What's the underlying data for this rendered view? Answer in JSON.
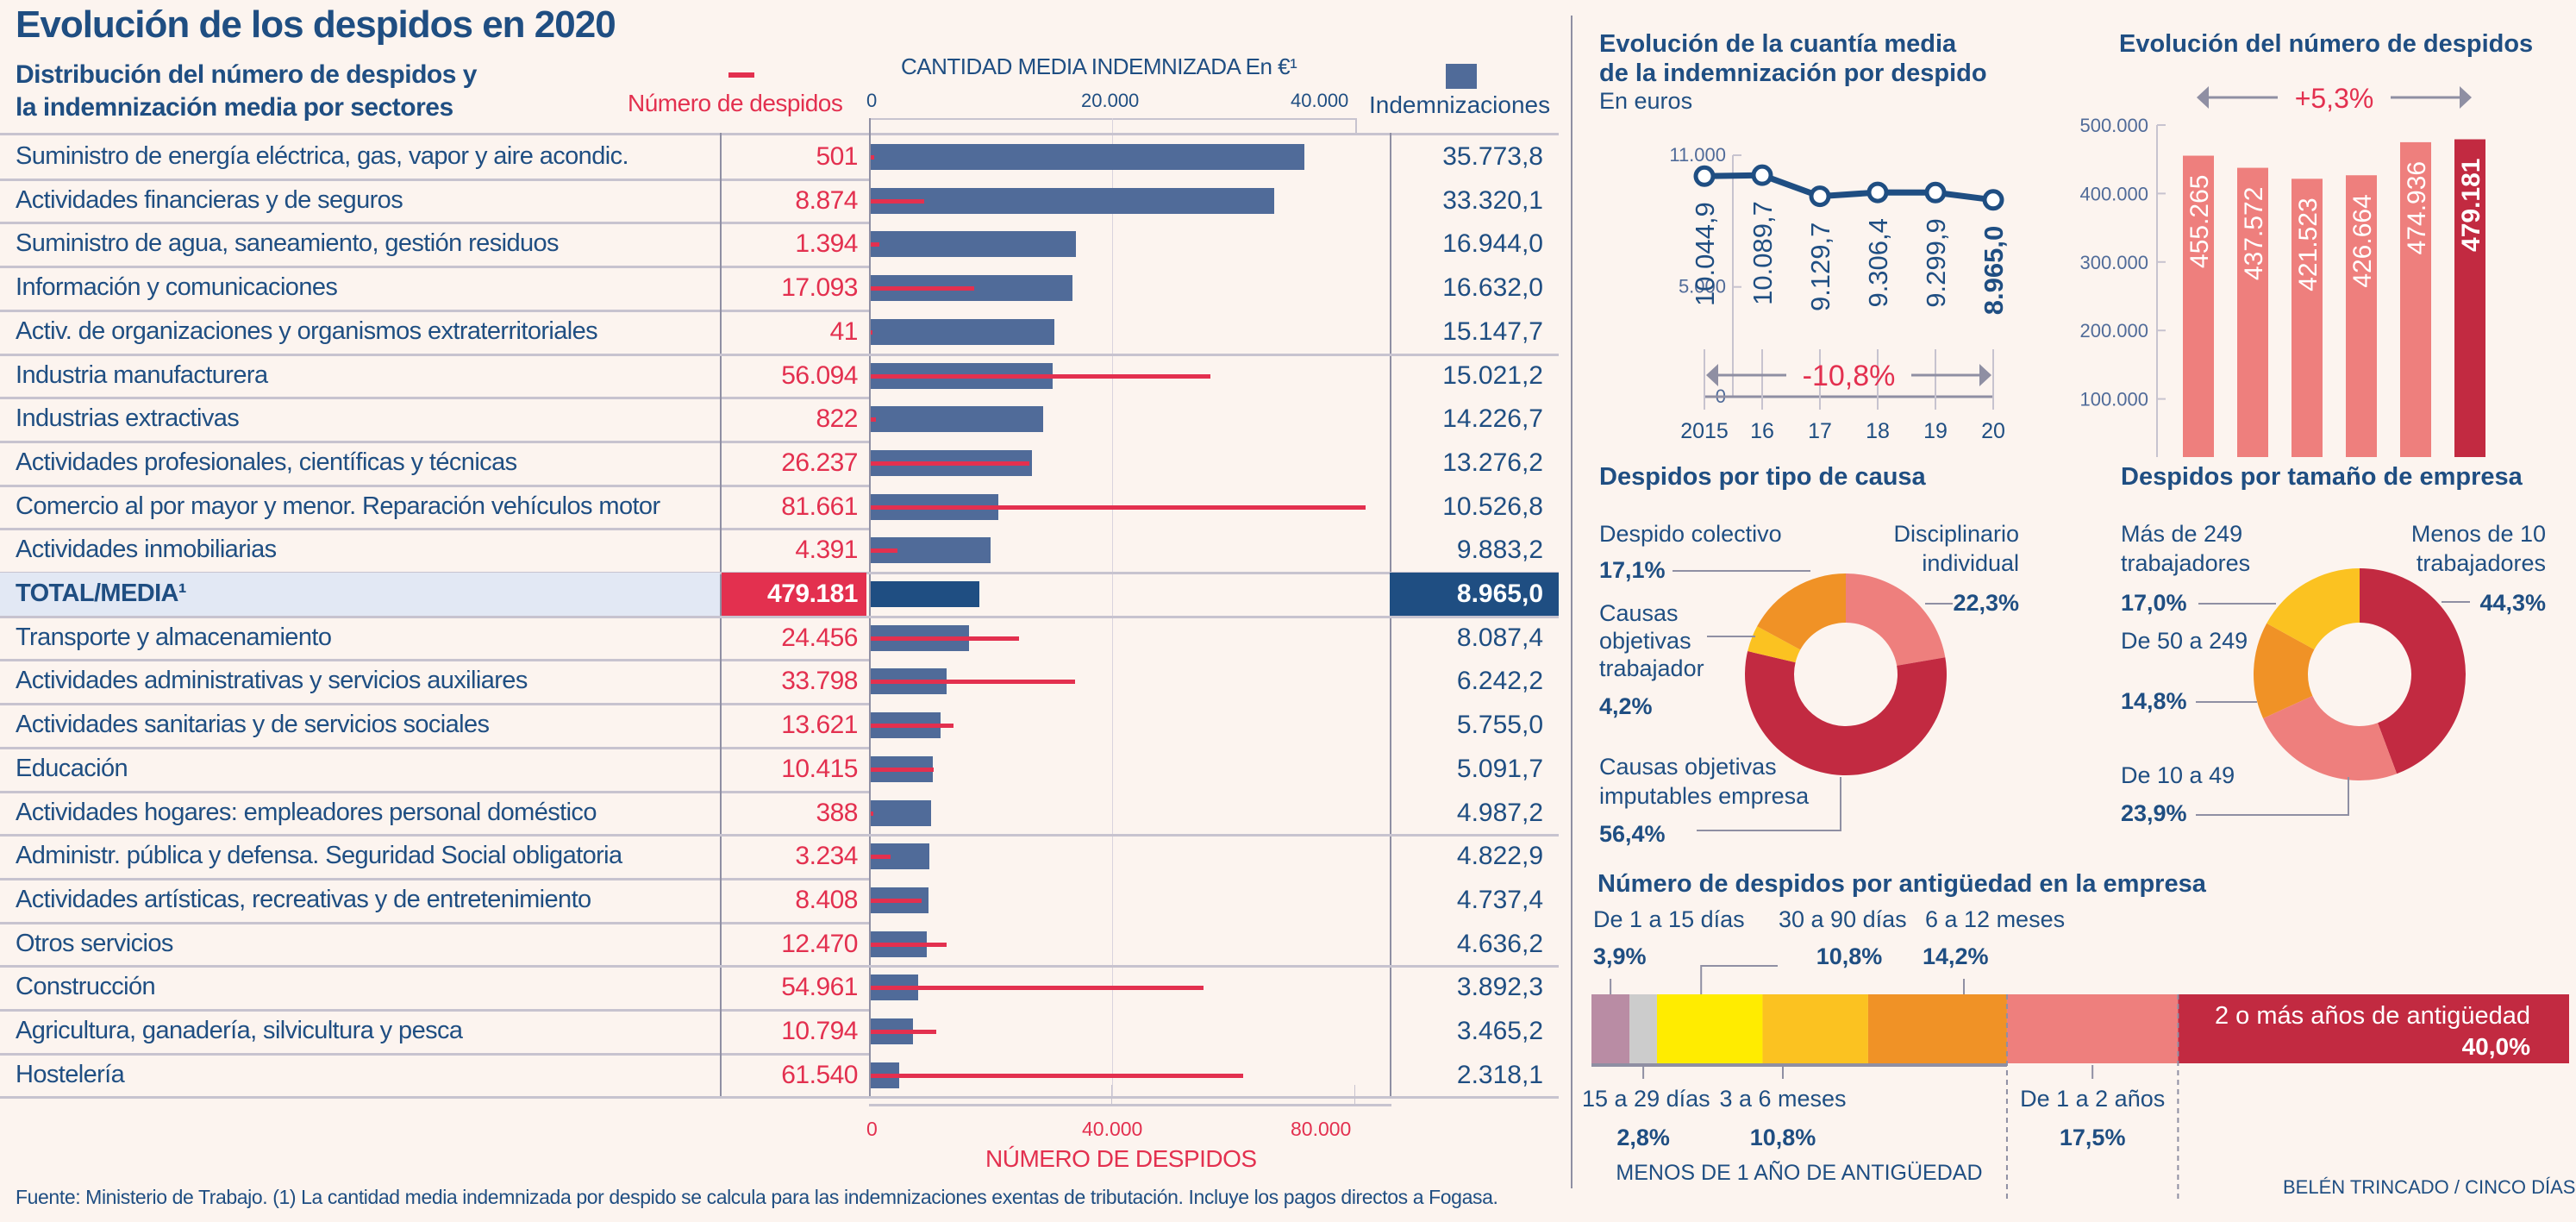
{
  "header": {
    "title": "Evolución de los despidos en 2020",
    "subtitle_line1": "Distribución del número de despidos y",
    "subtitle_line2": "la indemnización media por sectores"
  },
  "colors": {
    "navy": "#1f4e82",
    "bar_blue": "#506b99",
    "red": "#e3304f",
    "dark_red": "#c22a41",
    "salmon": "#ee7f7d",
    "orange": "#f09226",
    "amber": "#fbc221",
    "yellow": "#ffec00",
    "mauve": "#b98ca4",
    "grey": "#cccccc",
    "background": "#fcf4ef"
  },
  "sector_table": {
    "legend_despidos": "Número de despidos",
    "legend_indemnizaciones": "Indemnizaciones",
    "top_axis_title": "CANTIDAD MEDIA INDEMNIZADA En €¹",
    "top_axis_ticks": [
      "0",
      "20.000",
      "40.000"
    ],
    "bottom_axis_ticks": [
      "0",
      "40.000",
      "80.000"
    ],
    "bottom_axis_title": "NÚMERO DE DESPIDOS"
  },
  "chart_data": [
    {
      "type": "bar",
      "title": "Distribución del número de despidos y la indemnización media por sectores",
      "orientation": "horizontal",
      "xlabel_top": "CANTIDAD MEDIA INDEMNIZADA En €¹",
      "xlabel_bottom": "NÚMERO DE DESPIDOS",
      "xlim_indemnizacion": [
        0,
        40000
      ],
      "xlim_despidos": [
        0,
        80000
      ],
      "categories": [
        "Suministro de energía eléctrica, gas, vapor y aire acondic.",
        "Actividades financieras y de seguros",
        "Suministro de agua, saneamiento, gestión residuos",
        "Información y comunicaciones",
        "Activ. de organizaciones y organismos extraterritoriales",
        "Industria manufacturera",
        "Industrias extractivas",
        "Actividades profesionales, científicas y técnicas",
        "Comercio al por mayor y menor. Reparación vehículos motor",
        "Actividades inmobiliarias",
        "TOTAL/MEDIA¹",
        "Transporte y almacenamiento",
        "Actividades administrativas y servicios auxiliares",
        "Actividades sanitarias y de servicios sociales",
        "Educación",
        "Actividades hogares: empleadores personal doméstico",
        "Administr. pública y defensa. Seguridad Social obligatoria",
        "Actividades artísticas, recreativas y de entretenimiento",
        "Otros servicios",
        "Construcción",
        "Agricultura, ganadería, silvicultura y pesca",
        "Hostelería"
      ],
      "series": [
        {
          "name": "Número de despidos",
          "display": [
            "501",
            "8.874",
            "1.394",
            "17.093",
            "41",
            "56.094",
            "822",
            "26.237",
            "81.661",
            "4.391",
            "479.181",
            "24.456",
            "33.798",
            "13.621",
            "10.415",
            "388",
            "3.234",
            "8.408",
            "12.470",
            "54.961",
            "10.794",
            "61.540"
          ],
          "values": [
            501,
            8874,
            1394,
            17093,
            41,
            56094,
            822,
            26237,
            81661,
            4391,
            479181,
            24456,
            33798,
            13621,
            10415,
            388,
            3234,
            8408,
            12470,
            54961,
            10794,
            61540
          ]
        },
        {
          "name": "Indemnizaciones",
          "display": [
            "35.773,8",
            "33.320,1",
            "16.944,0",
            "16.632,0",
            "15.147,7",
            "15.021,2",
            "14.226,7",
            "13.276,2",
            "10.526,8",
            "9.883,2",
            "8.965,0",
            "8.087,4",
            "6.242,2",
            "5.755,0",
            "5.091,7",
            "4.987,2",
            "4.822,9",
            "4.737,4",
            "4.636,2",
            "3.892,3",
            "3.465,2",
            "2.318,1"
          ],
          "values": [
            35773.8,
            33320.1,
            16944.0,
            16632.0,
            15147.7,
            15021.2,
            14226.7,
            13276.2,
            10526.8,
            9883.2,
            8965.0,
            8087.4,
            6242.2,
            5755.0,
            5091.7,
            4987.2,
            4822.9,
            4737.4,
            4636.2,
            3892.3,
            3465.2,
            2318.1
          ]
        }
      ],
      "total_index": 10
    },
    {
      "type": "line",
      "title": "Evolución de la cuantía media de la indemnización por despido",
      "title_line1": "Evolución de la cuantía media",
      "title_line2": "de la indemnización por despido",
      "subtitle": "En euros",
      "x": [
        "2015",
        "16",
        "17",
        "18",
        "19",
        "20"
      ],
      "values": [
        10044.9,
        10089.7,
        9129.7,
        9306.4,
        9299.9,
        8965.0
      ],
      "labels": [
        "10.044,9",
        "10.089,7",
        "9.129,7",
        "9.306,4",
        "9.299,9",
        "8.965,0"
      ],
      "yticks": [
        "0",
        "5.000",
        "11.000"
      ],
      "ylim": [
        0,
        11000
      ],
      "annotation": "-10,8%"
    },
    {
      "type": "bar",
      "title": "Evolución del número de despidos",
      "categories": [
        "2015",
        "16",
        "17",
        "18",
        "19",
        "20"
      ],
      "values": [
        455265,
        437572,
        421523,
        426664,
        474936,
        479181
      ],
      "labels": [
        "455.265",
        "437.572",
        "421.523",
        "426.664",
        "474.936",
        "479.181"
      ],
      "yticks": [
        "0",
        "100.000",
        "200.000",
        "300.000",
        "400.000",
        "500.000"
      ],
      "ylim": [
        0,
        500000
      ],
      "annotation": "+5,3%"
    },
    {
      "type": "pie",
      "title": "Despidos por tipo de causa",
      "slices": [
        {
          "label": "Disciplinario individual",
          "label_lines": [
            "Disciplinario",
            "individual"
          ],
          "pct": 22.3,
          "display": "22,3%",
          "color": "#ee7f7d"
        },
        {
          "label": "Causas objetivas imputables empresa",
          "label_lines": [
            "Causas objetivas",
            "imputables empresa"
          ],
          "pct": 56.4,
          "display": "56,4%",
          "color": "#c22a41"
        },
        {
          "label": "Causas objetivas trabajador",
          "label_lines": [
            "Causas",
            "objetivas",
            "trabajador"
          ],
          "pct": 4.2,
          "display": "4,2%",
          "color": "#fbc221"
        },
        {
          "label": "Despido colectivo",
          "label_lines": [
            "Despido colectivo"
          ],
          "pct": 17.1,
          "display": "17,1%",
          "color": "#f09226"
        }
      ]
    },
    {
      "type": "pie",
      "title": "Despidos por tamaño de empresa",
      "slices": [
        {
          "label": "Menos de 10 trabajadores",
          "label_lines": [
            "Menos de 10",
            "trabajadores"
          ],
          "pct": 44.3,
          "display": "44,3%",
          "color": "#c22a41"
        },
        {
          "label": "De 10 a 49",
          "label_lines": [
            "De 10 a 49"
          ],
          "pct": 23.9,
          "display": "23,9%",
          "color": "#ee7f7d"
        },
        {
          "label": "De 50 a 249",
          "label_lines": [
            "De 50 a 249"
          ],
          "pct": 14.8,
          "display": "14,8%",
          "color": "#f09226"
        },
        {
          "label": "Más de 249 trabajadores",
          "label_lines": [
            "Más de 249",
            "trabajadores"
          ],
          "pct": 17.0,
          "display": "17,0%",
          "color": "#fbc221"
        }
      ]
    },
    {
      "type": "bar",
      "stacked": true,
      "title": "Número de despidos por antigüedad en la empresa",
      "segments": [
        {
          "label": "De 1 a 15 días",
          "pct": 3.9,
          "display": "3,9%",
          "color": "#b98ca4"
        },
        {
          "label": "15 a 29 días",
          "pct": 2.8,
          "display": "2,8%",
          "color": "#cccccc"
        },
        {
          "label": "30 a 90 días",
          "pct": 10.8,
          "display": "10,8%",
          "color": "#ffec00"
        },
        {
          "label": "3 a 6 meses",
          "pct": 10.8,
          "display": "10,8%",
          "color": "#fbc221"
        },
        {
          "label": "6 a 12 meses",
          "pct": 14.2,
          "display": "14,2%",
          "color": "#f09226"
        },
        {
          "label": "De 1 a 2 años",
          "pct": 17.5,
          "display": "17,5%",
          "color": "#ee7f7d"
        },
        {
          "label": "2 o más años de antigüedad",
          "pct": 40.0,
          "display": "40,0%",
          "color": "#c22a41"
        }
      ],
      "group_label": "MENOS DE 1 AÑO DE ANTIGÜEDAD"
    }
  ],
  "footer": {
    "source": "Fuente: Ministerio de Trabajo. (1) La cantidad media indemnizada por despido se calcula para las indemnizaciones exentas de tributación. Incluye los pagos directos a Fogasa.",
    "credit": "BELÉN TRINCADO / CINCO DÍAS"
  }
}
